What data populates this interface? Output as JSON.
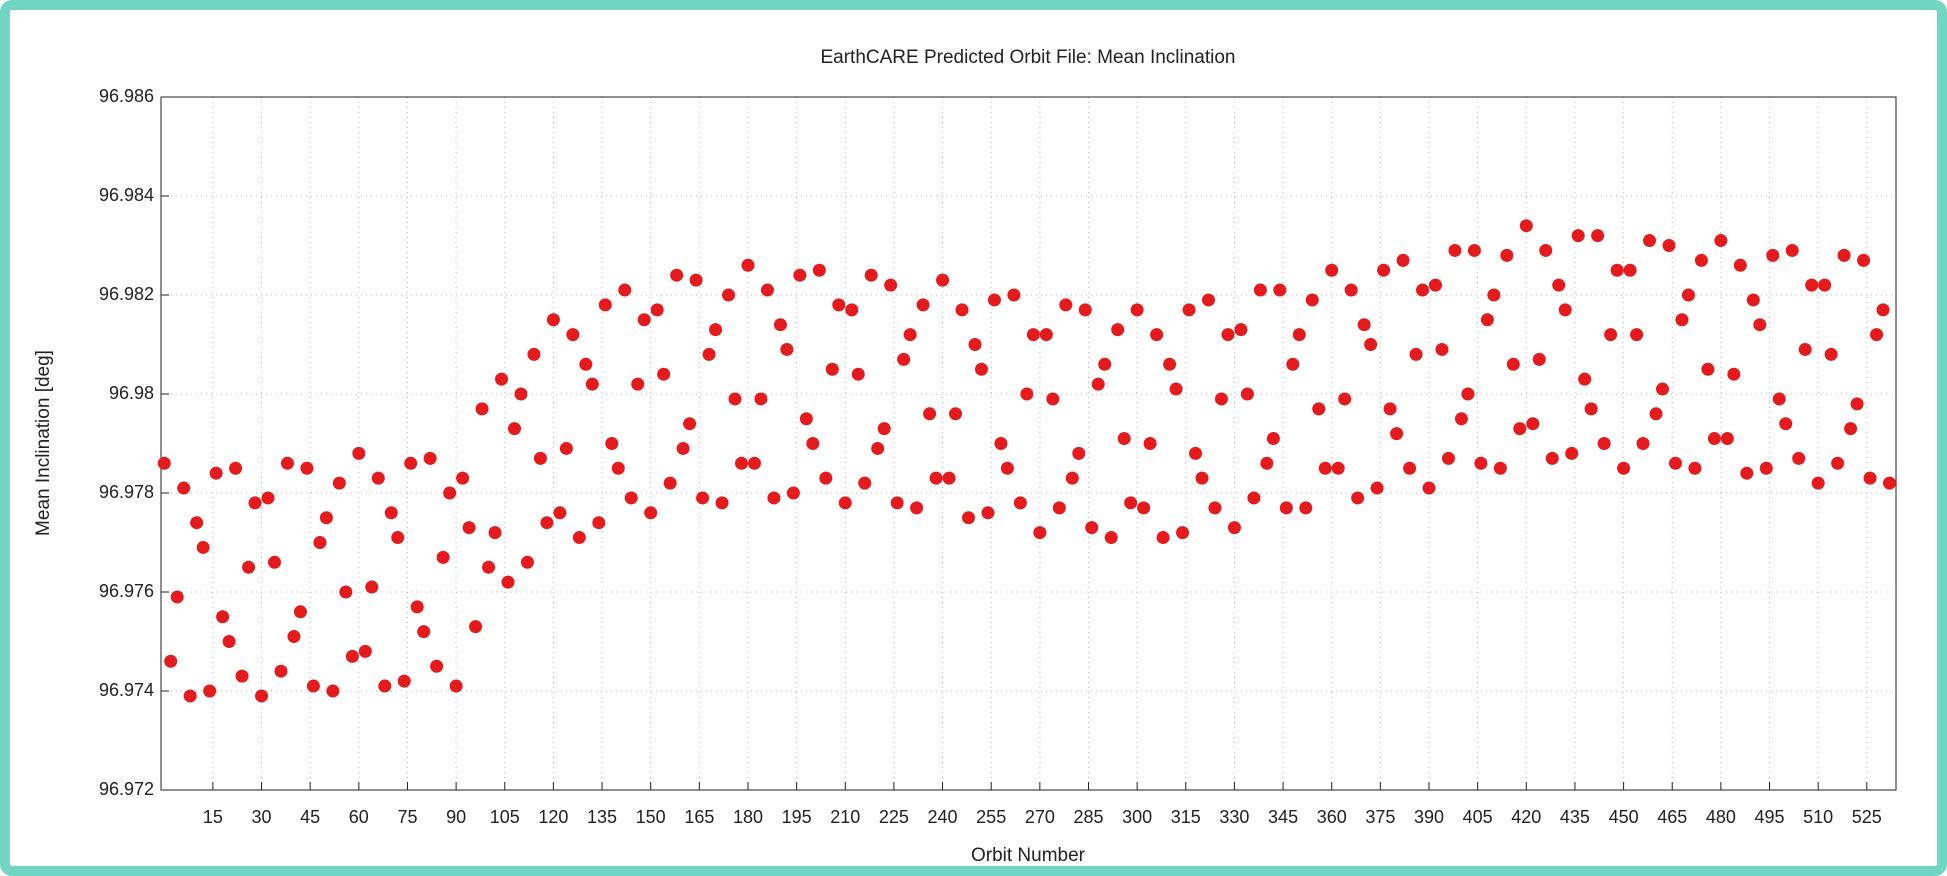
{
  "chart_data": {
    "type": "scatter",
    "title": "EarthCARE Predicted Orbit File: Mean Inclination",
    "x_label": "Orbit Number",
    "y_label": "Mean Inclination [deg]",
    "color": "#e41a1c",
    "grid": true,
    "xlim": [
      -1,
      534
    ],
    "ylim": [
      96.972,
      96.986
    ],
    "xticks": [
      15,
      30,
      45,
      60,
      75,
      90,
      105,
      120,
      135,
      150,
      165,
      180,
      195,
      210,
      225,
      240,
      255,
      270,
      285,
      300,
      315,
      330,
      345,
      360,
      375,
      390,
      405,
      420,
      435,
      450,
      465,
      480,
      495,
      510,
      525
    ],
    "yticks": [
      96.972,
      96.974,
      96.976,
      96.978,
      96.98,
      96.982,
      96.984,
      96.986
    ],
    "x": [
      0,
      2,
      4,
      6,
      8,
      10,
      12,
      14,
      16,
      18,
      20,
      22,
      24,
      26,
      28,
      30,
      32,
      34,
      36,
      38,
      40,
      42,
      44,
      46,
      48,
      50,
      52,
      54,
      56,
      58,
      60,
      62,
      64,
      66,
      68,
      70,
      72,
      74,
      76,
      78,
      80,
      82,
      84,
      86,
      88,
      90,
      92,
      94,
      96,
      98,
      100,
      102,
      104,
      106,
      108,
      110,
      112,
      114,
      116,
      118,
      120,
      122,
      124,
      126,
      128,
      130,
      132,
      134,
      136,
      138,
      140,
      142,
      144,
      146,
      148,
      150,
      152,
      154,
      156,
      158,
      160,
      162,
      164,
      166,
      168,
      170,
      172,
      174,
      176,
      178,
      180,
      182,
      184,
      186,
      188,
      190,
      192,
      194,
      196,
      198,
      200,
      202,
      204,
      206,
      208,
      210,
      212,
      214,
      216,
      218,
      220,
      222,
      224,
      226,
      228,
      230,
      232,
      234,
      236,
      238,
      240,
      242,
      244,
      246,
      248,
      250,
      252,
      254,
      256,
      258,
      260,
      262,
      264,
      266,
      268,
      270,
      272,
      274,
      276,
      278,
      280,
      282,
      284,
      286,
      288,
      290,
      292,
      294,
      296,
      298,
      300,
      302,
      304,
      306,
      308,
      310,
      312,
      314,
      316,
      318,
      320,
      322,
      324,
      326,
      328,
      330,
      332,
      334,
      336,
      338,
      340,
      342,
      344,
      346,
      348,
      350,
      352,
      354,
      356,
      358,
      360,
      362,
      364,
      366,
      368,
      370,
      372,
      374,
      376,
      378,
      380,
      382,
      384,
      386,
      388,
      390,
      392,
      394,
      396,
      398,
      400,
      402,
      404,
      406,
      408,
      410,
      412,
      414,
      416,
      418,
      420,
      422,
      424,
      426,
      428,
      430,
      432,
      434,
      436,
      438,
      440,
      442,
      444,
      446,
      448,
      450,
      452,
      454,
      456,
      458,
      460,
      462,
      464,
      466,
      468,
      470,
      472,
      474,
      476,
      478,
      480,
      482,
      484,
      486,
      488,
      490,
      492,
      494,
      496,
      498,
      500,
      502,
      504,
      506,
      508,
      510,
      512,
      514,
      516,
      518,
      520,
      522,
      524,
      526,
      528,
      530,
      532
    ],
    "values": [
      96.9786,
      96.9746,
      96.9759,
      96.9781,
      96.9739,
      96.9774,
      96.9769,
      96.974,
      96.9784,
      96.9755,
      96.975,
      96.9785,
      96.9743,
      96.9765,
      96.9778,
      96.9739,
      96.9779,
      96.9766,
      96.9744,
      96.9786,
      96.9751,
      96.9756,
      96.9785,
      96.9741,
      96.977,
      96.9775,
      96.974,
      96.9782,
      96.976,
      96.9747,
      96.9788,
      96.9748,
      96.9761,
      96.9783,
      96.9741,
      96.9776,
      96.9771,
      96.9742,
      96.9786,
      96.9757,
      96.9752,
      96.9787,
      96.9745,
      96.9767,
      96.978,
      96.9741,
      96.9783,
      96.9773,
      96.9753,
      96.9797,
      96.9765,
      96.9772,
      96.9803,
      96.9762,
      96.9793,
      96.98,
      96.9766,
      96.9808,
      96.9787,
      96.9774,
      96.9815,
      96.9776,
      96.9789,
      96.9812,
      96.9771,
      96.9806,
      96.9802,
      96.9774,
      96.9818,
      96.979,
      96.9785,
      96.9821,
      96.9779,
      96.9802,
      96.9815,
      96.9776,
      96.9817,
      96.9804,
      96.9782,
      96.9824,
      96.9789,
      96.9794,
      96.9823,
      96.9779,
      96.9808,
      96.9813,
      96.9778,
      96.982,
      96.9799,
      96.9786,
      96.9826,
      96.9786,
      96.9799,
      96.9821,
      96.9779,
      96.9814,
      96.9809,
      96.978,
      96.9824,
      96.9795,
      96.979,
      96.9825,
      96.9783,
      96.9805,
      96.9818,
      96.9778,
      96.9817,
      96.9804,
      96.9782,
      96.9824,
      96.9789,
      96.9793,
      96.9822,
      96.9778,
      96.9807,
      96.9812,
      96.9777,
      96.9818,
      96.9796,
      96.9783,
      96.9823,
      96.9783,
      96.9796,
      96.9817,
      96.9775,
      96.981,
      96.9805,
      96.9776,
      96.9819,
      96.979,
      96.9785,
      96.982,
      96.9778,
      96.98,
      96.9812,
      96.9772,
      96.9812,
      96.9799,
      96.9777,
      96.9818,
      96.9783,
      96.9788,
      96.9817,
      96.9773,
      96.9802,
      96.9806,
      96.9771,
      96.9813,
      96.9791,
      96.9778,
      96.9817,
      96.9777,
      96.979,
      96.9812,
      96.9771,
      96.9806,
      96.9801,
      96.9772,
      96.9817,
      96.9788,
      96.9783,
      96.9819,
      96.9777,
      96.9799,
      96.9812,
      96.9773,
      96.9813,
      96.98,
      96.9779,
      96.9821,
      96.9786,
      96.9791,
      96.9821,
      96.9777,
      96.9806,
      96.9812,
      96.9777,
      96.9819,
      96.9797,
      96.9785,
      96.9825,
      96.9785,
      96.9799,
      96.9821,
      96.9779,
      96.9814,
      96.981,
      96.9781,
      96.9825,
      96.9797,
      96.9792,
      96.9827,
      96.9785,
      96.9808,
      96.9821,
      96.9781,
      96.9822,
      96.9809,
      96.9787,
      96.9829,
      96.9795,
      96.98,
      96.9829,
      96.9786,
      96.9815,
      96.982,
      96.9785,
      96.9828,
      96.9806,
      96.9793,
      96.9834,
      96.9794,
      96.9807,
      96.9829,
      96.9787,
      96.9822,
      96.9817,
      96.9788,
      96.9832,
      96.9803,
      96.9797,
      96.9832,
      96.979,
      96.9812,
      96.9825,
      96.9785,
      96.9825,
      96.9812,
      96.979,
      96.9831,
      96.9796,
      96.9801,
      96.983,
      96.9786,
      96.9815,
      96.982,
      96.9785,
      96.9827,
      96.9805,
      96.9791,
      96.9831,
      96.9791,
      96.9804,
      96.9826,
      96.9784,
      96.9819,
      96.9814,
      96.9785,
      96.9828,
      96.9799,
      96.9794,
      96.9829,
      96.9787,
      96.9809,
      96.9822,
      96.9782,
      96.9822,
      96.9808,
      96.9786,
      96.9828,
      96.9793,
      96.9798,
      96.9827,
      96.9783,
      96.9812,
      96.9817,
      96.9782
    ]
  }
}
